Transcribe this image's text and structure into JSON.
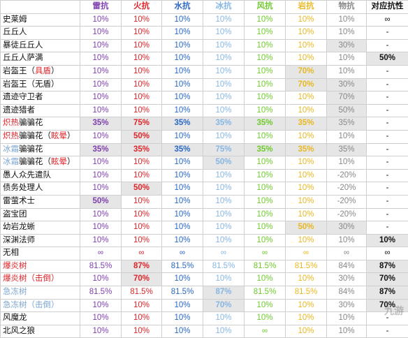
{
  "colors": {
    "thunder": "#7e3fae",
    "fire": "#e0242a",
    "water": "#2a67c4",
    "ice": "#86b6e3",
    "wind": "#6fca2c",
    "rock": "#e8b821",
    "phys": "#888888",
    "counter": "#111111",
    "highlight": "#e6e6e6"
  },
  "header": {
    "name": "",
    "thunder": "雷抗",
    "fire": "火抗",
    "water": "水抗",
    "ice": "冰抗",
    "wind": "风抗",
    "rock": "岩抗",
    "phys": "物抗",
    "counter": "对应抗性"
  },
  "rows": [
    {
      "name": [
        {
          "t": "史莱姆"
        }
      ],
      "v": [
        "10%",
        "10%",
        "10%",
        "10%",
        "10%",
        "10%",
        "10%",
        "∞"
      ],
      "hl": [],
      "b": []
    },
    {
      "name": [
        {
          "t": "丘丘人"
        }
      ],
      "v": [
        "10%",
        "10%",
        "10%",
        "10%",
        "10%",
        "10%",
        "10%",
        "-"
      ],
      "hl": [],
      "b": []
    },
    {
      "name": [
        {
          "t": "暴徒丘丘人"
        }
      ],
      "v": [
        "10%",
        "10%",
        "10%",
        "10%",
        "10%",
        "10%",
        "30%",
        "-"
      ],
      "hl": [
        6
      ],
      "b": []
    },
    {
      "name": [
        {
          "t": "丘丘人萨满"
        }
      ],
      "v": [
        "10%",
        "10%",
        "10%",
        "10%",
        "10%",
        "10%",
        "10%",
        "50%"
      ],
      "hl": [
        7
      ],
      "b": [
        7
      ]
    },
    {
      "name": [
        {
          "t": "岩盔王（"
        },
        {
          "t": "具盾",
          "c": "red"
        },
        {
          "t": "）"
        }
      ],
      "v": [
        "10%",
        "10%",
        "10%",
        "10%",
        "10%",
        "70%",
        "10%",
        "-"
      ],
      "hl": [
        5
      ],
      "b": [
        5
      ]
    },
    {
      "name": [
        {
          "t": "岩盔王（无盾）"
        }
      ],
      "v": [
        "10%",
        "10%",
        "10%",
        "10%",
        "10%",
        "70%",
        "30%",
        "-"
      ],
      "hl": [
        5,
        6
      ],
      "b": [
        5
      ]
    },
    {
      "name": [
        {
          "t": "遗迹守卫者"
        }
      ],
      "v": [
        "10%",
        "10%",
        "10%",
        "10%",
        "10%",
        "10%",
        "70%",
        "-"
      ],
      "hl": [
        6
      ],
      "b": []
    },
    {
      "name": [
        {
          "t": "遗迹猎者"
        }
      ],
      "v": [
        "10%",
        "10%",
        "10%",
        "10%",
        "10%",
        "10%",
        "50%",
        "-"
      ],
      "hl": [
        6
      ],
      "b": []
    },
    {
      "name": [
        {
          "t": "炽热",
          "c": "red"
        },
        {
          "t": "骗骗花"
        }
      ],
      "v": [
        "35%",
        "75%",
        "35%",
        "35%",
        "35%",
        "35%",
        "35%",
        "-"
      ],
      "hl": [
        0,
        1,
        2,
        3,
        4,
        5,
        6
      ],
      "b": [
        0,
        1,
        2,
        3,
        4,
        5
      ]
    },
    {
      "name": [
        {
          "t": "炽热",
          "c": "red"
        },
        {
          "t": "骗骗花（"
        },
        {
          "t": "眩晕",
          "c": "red"
        },
        {
          "t": "）"
        }
      ],
      "v": [
        "10%",
        "50%",
        "10%",
        "10%",
        "10%",
        "10%",
        "10%",
        "-"
      ],
      "hl": [
        1
      ],
      "b": [
        1
      ]
    },
    {
      "name": [
        {
          "t": "冰霜",
          "c": "blue"
        },
        {
          "t": "骗骗花"
        }
      ],
      "v": [
        "35%",
        "35%",
        "35%",
        "75%",
        "35%",
        "35%",
        "35%",
        "-"
      ],
      "hl": [
        0,
        1,
        2,
        3,
        4,
        5,
        6
      ],
      "b": [
        0,
        1,
        2,
        3,
        4,
        5
      ]
    },
    {
      "name": [
        {
          "t": "冰霜",
          "c": "blue"
        },
        {
          "t": "骗骗花（"
        },
        {
          "t": "眩晕",
          "c": "red"
        },
        {
          "t": "）"
        }
      ],
      "v": [
        "10%",
        "10%",
        "10%",
        "50%",
        "10%",
        "10%",
        "10%",
        "-"
      ],
      "hl": [
        3
      ],
      "b": [
        3
      ]
    },
    {
      "name": [
        {
          "t": "愚人众先遣队"
        }
      ],
      "v": [
        "10%",
        "10%",
        "10%",
        "10%",
        "10%",
        "10%",
        "-20%",
        "-"
      ],
      "hl": [],
      "b": []
    },
    {
      "name": [
        {
          "t": "债务处理人"
        }
      ],
      "v": [
        "10%",
        "50%",
        "10%",
        "10%",
        "10%",
        "10%",
        "-20%",
        "-"
      ],
      "hl": [
        1
      ],
      "b": [
        1
      ]
    },
    {
      "name": [
        {
          "t": "雷萤术士"
        }
      ],
      "v": [
        "50%",
        "10%",
        "10%",
        "10%",
        "10%",
        "10%",
        "-20%",
        "-"
      ],
      "hl": [
        0
      ],
      "b": [
        0
      ]
    },
    {
      "name": [
        {
          "t": "盗宝团"
        }
      ],
      "v": [
        "10%",
        "10%",
        "10%",
        "10%",
        "10%",
        "10%",
        "-20%",
        "-"
      ],
      "hl": [],
      "b": []
    },
    {
      "name": [
        {
          "t": "幼岩龙蜥"
        }
      ],
      "v": [
        "10%",
        "10%",
        "10%",
        "10%",
        "10%",
        "50%",
        "30%",
        "-"
      ],
      "hl": [
        5,
        6
      ],
      "b": [
        5
      ]
    },
    {
      "name": [
        {
          "t": "深渊法师"
        }
      ],
      "v": [
        "10%",
        "10%",
        "10%",
        "10%",
        "10%",
        "10%",
        "10%",
        "10%"
      ],
      "hl": [
        7
      ],
      "b": [
        7
      ]
    },
    {
      "name": [
        {
          "t": "无相"
        }
      ],
      "v": [
        "∞",
        "∞",
        "∞",
        "∞",
        "∞",
        "∞",
        "∞",
        "∞"
      ],
      "hl": [],
      "b": []
    },
    {
      "name": [
        {
          "t": "爆炎树",
          "c": "red"
        }
      ],
      "v": [
        "81.5%",
        "87%",
        "81.5%",
        "81.5%",
        "81.5%",
        "81.5%",
        "84%",
        "87%"
      ],
      "hl": [
        1,
        7
      ],
      "b": [
        1,
        7
      ]
    },
    {
      "name": [
        {
          "t": "爆炎树（击倒）",
          "c": "red"
        }
      ],
      "v": [
        "10%",
        "70%",
        "10%",
        "10%",
        "10%",
        "10%",
        "30%",
        "70%"
      ],
      "hl": [
        1,
        7
      ],
      "b": [
        1,
        7
      ]
    },
    {
      "name": [
        {
          "t": "急冻树",
          "c": "blue"
        }
      ],
      "v": [
        "81.5%",
        "81.5%",
        "81.5%",
        "87%",
        "81.5%",
        "81.5%",
        "84%",
        "87%"
      ],
      "hl": [
        3,
        7
      ],
      "b": [
        3,
        7
      ]
    },
    {
      "name": [
        {
          "t": "急冻树（击倒）",
          "c": "blue"
        }
      ],
      "v": [
        "10%",
        "10%",
        "10%",
        "70%",
        "10%",
        "10%",
        "30%",
        "70%"
      ],
      "hl": [
        3,
        7
      ],
      "b": [
        3,
        7
      ]
    },
    {
      "name": [
        {
          "t": "风魔龙"
        }
      ],
      "v": [
        "10%",
        "10%",
        "10%",
        "10%",
        "10%",
        "10%",
        "10%",
        "-"
      ],
      "hl": [],
      "b": []
    },
    {
      "name": [
        {
          "t": "北风之狼"
        }
      ],
      "v": [
        "10%",
        "10%",
        "10%",
        "10%",
        "∞",
        "10%",
        "10%",
        "-"
      ],
      "hl": [],
      "b": []
    }
  ],
  "watermark": "九游"
}
